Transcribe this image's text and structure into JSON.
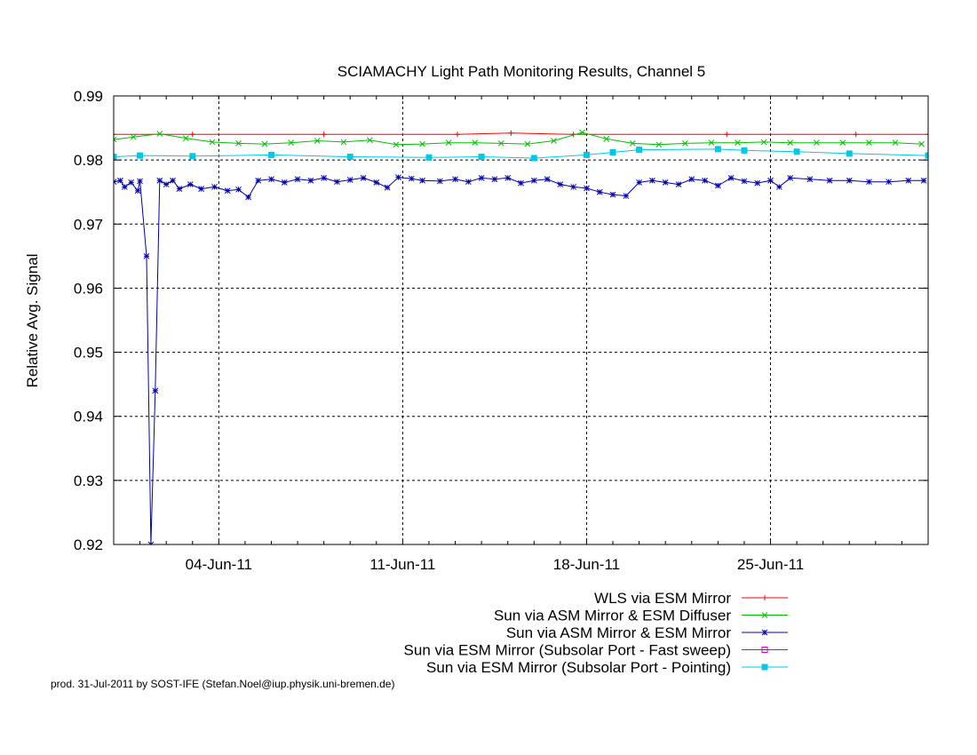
{
  "chart_data": {
    "type": "line",
    "title": "SCIAMACHY Light Path Monitoring Results, Channel 5",
    "xlabel": "",
    "ylabel": "Relative Avg. Signal",
    "xlim": [
      "2011-05-31T00:00",
      "2011-07-01T00:00"
    ],
    "ylim": [
      0.92,
      0.99
    ],
    "yticks": [
      0.92,
      0.93,
      0.94,
      0.95,
      0.96,
      0.97,
      0.98,
      0.99
    ],
    "xticks": [
      {
        "date": "2011-06-04",
        "label": "04-Jun-11"
      },
      {
        "date": "2011-06-11",
        "label": "11-Jun-11"
      },
      {
        "date": "2011-06-18",
        "label": "18-Jun-11"
      },
      {
        "date": "2011-06-25",
        "label": "25-Jun-11"
      }
    ],
    "grid": true,
    "legend_position": "bottom-right",
    "series": [
      {
        "name": "WLS via ESM Mirror",
        "color": "#ff0000",
        "marker": "plus",
        "points": [
          [
            "2011-05-31T00:00",
            0.984
          ],
          [
            "2011-06-03T00:00",
            0.984
          ],
          [
            "2011-06-08T00:00",
            0.984
          ],
          [
            "2011-06-13T02:00",
            0.984
          ],
          [
            "2011-06-15T03:00",
            0.9842
          ],
          [
            "2011-06-17T12:00",
            0.984
          ],
          [
            "2011-06-23T08:00",
            0.984
          ],
          [
            "2011-06-28T06:00",
            0.984
          ],
          [
            "2011-07-01T00:00",
            0.984
          ]
        ]
      },
      {
        "name": "Sun via ASM Mirror & ESM Diffuser",
        "color": "#00c000",
        "marker": "cross",
        "points": [
          [
            "2011-05-31T00:00",
            0.9832
          ],
          [
            "2011-05-31T18:00",
            0.9836
          ],
          [
            "2011-06-01T18:00",
            0.9841
          ],
          [
            "2011-06-02T18:00",
            0.9834
          ],
          [
            "2011-06-03T18:00",
            0.9828
          ],
          [
            "2011-06-04T18:00",
            0.9826
          ],
          [
            "2011-06-05T18:00",
            0.9825
          ],
          [
            "2011-06-06T18:00",
            0.9827
          ],
          [
            "2011-06-07T18:00",
            0.983
          ],
          [
            "2011-06-08T18:00",
            0.9828
          ],
          [
            "2011-06-09T18:00",
            0.9831
          ],
          [
            "2011-06-10T18:00",
            0.9824
          ],
          [
            "2011-06-11T18:00",
            0.9825
          ],
          [
            "2011-06-12T18:00",
            0.9827
          ],
          [
            "2011-06-13T18:00",
            0.9827
          ],
          [
            "2011-06-14T18:00",
            0.9826
          ],
          [
            "2011-06-15T18:00",
            0.9825
          ],
          [
            "2011-06-16T18:00",
            0.983
          ],
          [
            "2011-06-17T20:00",
            0.9843
          ],
          [
            "2011-06-18T18:00",
            0.9833
          ],
          [
            "2011-06-19T18:00",
            0.9826
          ],
          [
            "2011-06-20T18:00",
            0.9824
          ],
          [
            "2011-06-21T18:00",
            0.9826
          ],
          [
            "2011-06-22T18:00",
            0.9827
          ],
          [
            "2011-06-23T18:00",
            0.9827
          ],
          [
            "2011-06-24T18:00",
            0.9828
          ],
          [
            "2011-06-25T18:00",
            0.9827
          ],
          [
            "2011-06-26T18:00",
            0.9827
          ],
          [
            "2011-06-27T18:00",
            0.9827
          ],
          [
            "2011-06-28T18:00",
            0.9827
          ],
          [
            "2011-06-29T18:00",
            0.9827
          ],
          [
            "2011-06-30T18:00",
            0.9825
          ]
        ]
      },
      {
        "name": "Sun via ASM Mirror & ESM Mirror",
        "color": "#0000b0",
        "marker": "star",
        "points": [
          [
            "2011-05-31T00:00",
            0.9766
          ],
          [
            "2011-05-31T06:00",
            0.9768
          ],
          [
            "2011-05-31T10:00",
            0.9758
          ],
          [
            "2011-05-31T16:00",
            0.9765
          ],
          [
            "2011-05-31T22:00",
            0.9752
          ],
          [
            "2011-06-01T00:00",
            0.9767
          ],
          [
            "2011-06-01T06:00",
            0.965
          ],
          [
            "2011-06-01T10:00",
            0.92
          ],
          [
            "2011-06-01T14:00",
            0.944
          ],
          [
            "2011-06-01T18:00",
            0.9768
          ],
          [
            "2011-06-02T00:00",
            0.9762
          ],
          [
            "2011-06-02T06:00",
            0.9768
          ],
          [
            "2011-06-02T12:00",
            0.9755
          ],
          [
            "2011-06-02T22:00",
            0.9762
          ],
          [
            "2011-06-03T08:00",
            0.9755
          ],
          [
            "2011-06-03T20:00",
            0.9758
          ],
          [
            "2011-06-04T08:00",
            0.9752
          ],
          [
            "2011-06-04T18:00",
            0.9754
          ],
          [
            "2011-06-05T03:00",
            0.9742
          ],
          [
            "2011-06-05T12:00",
            0.9768
          ],
          [
            "2011-06-06T00:00",
            0.977
          ],
          [
            "2011-06-06T12:00",
            0.9765
          ],
          [
            "2011-06-07T00:00",
            0.977
          ],
          [
            "2011-06-07T12:00",
            0.9768
          ],
          [
            "2011-06-08T00:00",
            0.9772
          ],
          [
            "2011-06-08T12:00",
            0.9766
          ],
          [
            "2011-06-09T00:00",
            0.9769
          ],
          [
            "2011-06-09T12:00",
            0.9772
          ],
          [
            "2011-06-10T00:00",
            0.9765
          ],
          [
            "2011-06-10T10:00",
            0.9757
          ],
          [
            "2011-06-10T20:00",
            0.9773
          ],
          [
            "2011-06-11T08:00",
            0.9771
          ],
          [
            "2011-06-11T18:00",
            0.9768
          ],
          [
            "2011-06-12T10:00",
            0.9767
          ],
          [
            "2011-06-13T00:00",
            0.977
          ],
          [
            "2011-06-13T12:00",
            0.9766
          ],
          [
            "2011-06-14T00:00",
            0.9772
          ],
          [
            "2011-06-14T12:00",
            0.977
          ],
          [
            "2011-06-15T00:00",
            0.9772
          ],
          [
            "2011-06-15T12:00",
            0.9764
          ],
          [
            "2011-06-16T00:00",
            0.9768
          ],
          [
            "2011-06-16T12:00",
            0.977
          ],
          [
            "2011-06-17T00:00",
            0.9762
          ],
          [
            "2011-06-17T12:00",
            0.9758
          ],
          [
            "2011-06-18T00:00",
            0.9756
          ],
          [
            "2011-06-18T12:00",
            0.975
          ],
          [
            "2011-06-19T00:00",
            0.9746
          ],
          [
            "2011-06-19T12:00",
            0.9744
          ],
          [
            "2011-06-20T00:00",
            0.9765
          ],
          [
            "2011-06-20T12:00",
            0.9768
          ],
          [
            "2011-06-21T00:00",
            0.9765
          ],
          [
            "2011-06-21T12:00",
            0.9762
          ],
          [
            "2011-06-22T00:00",
            0.977
          ],
          [
            "2011-06-22T12:00",
            0.9768
          ],
          [
            "2011-06-23T00:00",
            0.976
          ],
          [
            "2011-06-23T12:00",
            0.9772
          ],
          [
            "2011-06-24T00:00",
            0.9767
          ],
          [
            "2011-06-24T12:00",
            0.9764
          ],
          [
            "2011-06-25T00:00",
            0.9768
          ],
          [
            "2011-06-25T08:00",
            0.9758
          ],
          [
            "2011-06-25T18:00",
            0.9772
          ],
          [
            "2011-06-26T12:00",
            0.977
          ],
          [
            "2011-06-27T06:00",
            0.9768
          ],
          [
            "2011-06-28T00:00",
            0.9768
          ],
          [
            "2011-06-28T18:00",
            0.9766
          ],
          [
            "2011-06-29T12:00",
            0.9766
          ],
          [
            "2011-06-30T06:00",
            0.9768
          ],
          [
            "2011-06-30T20:00",
            0.9768
          ]
        ]
      },
      {
        "name": "Sun via ESM Mirror (Subsolar Port - Fast sweep)",
        "color": "#cc00cc",
        "marker": "square",
        "points": []
      },
      {
        "name": "Sun via ESM Mirror (Subsolar Port - Pointing)",
        "color": "#00c8e8",
        "marker": "filled-square",
        "points": [
          [
            "2011-05-31T00:00",
            0.9805
          ],
          [
            "2011-06-01T00:00",
            0.9807
          ],
          [
            "2011-06-03T00:00",
            0.9806
          ],
          [
            "2011-06-06T00:00",
            0.9808
          ],
          [
            "2011-06-09T00:00",
            0.9805
          ],
          [
            "2011-06-12T00:00",
            0.9804
          ],
          [
            "2011-06-14T00:00",
            0.9805
          ],
          [
            "2011-06-16T00:00",
            0.9803
          ],
          [
            "2011-06-18T00:00",
            0.9808
          ],
          [
            "2011-06-19T00:00",
            0.9812
          ],
          [
            "2011-06-20T00:00",
            0.9816
          ],
          [
            "2011-06-23T00:00",
            0.9817
          ],
          [
            "2011-06-24T00:00",
            0.9815
          ],
          [
            "2011-06-26T00:00",
            0.9813
          ],
          [
            "2011-06-28T00:00",
            0.981
          ],
          [
            "2011-07-01T00:00",
            0.9807
          ]
        ]
      }
    ]
  },
  "footer": "prod. 31-Jul-2011 by SOST-IFE (Stefan.Noel@iup.physik.uni-bremen.de)"
}
